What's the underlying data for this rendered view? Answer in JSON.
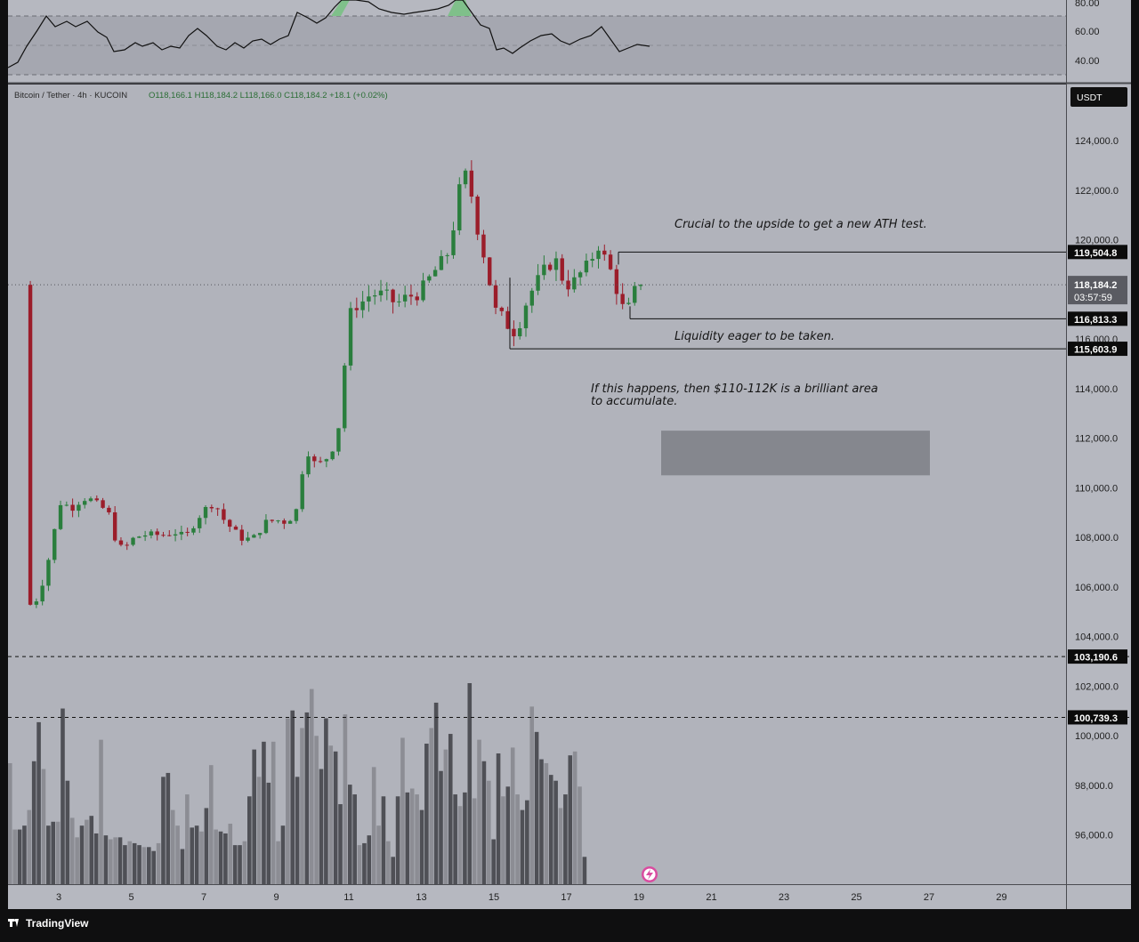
{
  "header": {
    "symbol": "Bitcoin / Tether · 4h · KUCOIN",
    "ohlc": "O118,166.1  H118,184.2  L118,166.0  C118,184.2  +18.1 (+0.02%)"
  },
  "currency_label": "USDT",
  "footer": {
    "brand": "TradingView"
  },
  "colors": {
    "background": "#b1b3bb",
    "up": "#2a7e3d",
    "down": "#9b1d2a",
    "volume_dark": "#4f5056",
    "volume_light": "#8c8d94",
    "rsi_line": "#111111",
    "accumulation_zone": "#85878e"
  },
  "rsi": {
    "ticks": [
      "80.00",
      "60.00",
      "40.00"
    ]
  },
  "chart_data": {
    "type": "candlestick",
    "timeframe": "4h",
    "ylim": [
      94800,
      125600
    ],
    "y_ticks": [
      "124,000.0",
      "122,000.0",
      "120,000.0",
      "116,000.0",
      "114,000.0",
      "112,000.0",
      "110,000.0",
      "108,000.0",
      "106,000.0",
      "104,000.0",
      "102,000.0",
      "100,000.0",
      "98,000.0",
      "96,000.0"
    ],
    "x_ticks": [
      "3",
      "5",
      "7",
      "9",
      "11",
      "13",
      "15",
      "17",
      "19",
      "21",
      "23",
      "25",
      "27",
      "29"
    ],
    "current_price": "118,184.2",
    "countdown": "03:57:59",
    "levels": [
      {
        "label": "119,504.8",
        "value": 119504.8,
        "style": "solid"
      },
      {
        "label": "116,813.3",
        "value": 116813.3,
        "style": "solid"
      },
      {
        "label": "115,603.9",
        "value": 115603.9,
        "style": "solid"
      },
      {
        "label": "103,190.6",
        "value": 103190.6,
        "style": "dashed"
      },
      {
        "label": "100,739.3",
        "value": 100739.3,
        "style": "dashed"
      }
    ],
    "accumulation_zone": [
      110500,
      112300
    ],
    "annotations": {
      "upside": "Crucial to the upside to get a new ATH test.",
      "liquidity": "Liquidity eager to be taken.",
      "scenario_line1": "If this happens, then $110-112K is a brilliant area",
      "scenario_line2": "to accumulate."
    },
    "price_path": [
      [
        2.1,
        105400
      ],
      [
        2.3,
        105200
      ],
      [
        2.5,
        105900
      ],
      [
        2.7,
        107000
      ],
      [
        2.9,
        108400
      ],
      [
        3.0,
        109400
      ],
      [
        3.2,
        109300
      ],
      [
        3.4,
        109200
      ],
      [
        3.6,
        109500
      ],
      [
        3.8,
        109600
      ],
      [
        4.0,
        109400
      ],
      [
        4.2,
        109200
      ],
      [
        4.4,
        108900
      ],
      [
        4.6,
        107700
      ],
      [
        4.8,
        107500
      ],
      [
        5.0,
        107900
      ],
      [
        5.3,
        108100
      ],
      [
        5.6,
        108100
      ],
      [
        5.9,
        108100
      ],
      [
        6.2,
        108200
      ],
      [
        6.5,
        108000
      ],
      [
        6.8,
        108700
      ],
      [
        7.0,
        109100
      ],
      [
        7.3,
        109400
      ],
      [
        7.5,
        108800
      ],
      [
        7.8,
        108300
      ],
      [
        8.1,
        107900
      ],
      [
        8.4,
        108000
      ],
      [
        8.7,
        108600
      ],
      [
        9.0,
        108700
      ],
      [
        9.3,
        108600
      ],
      [
        9.6,
        109200
      ],
      [
        9.8,
        111700
      ],
      [
        10.0,
        111000
      ],
      [
        10.3,
        111000
      ],
      [
        10.6,
        111700
      ],
      [
        10.8,
        113000
      ],
      [
        10.95,
        116500
      ],
      [
        11.1,
        117300
      ],
      [
        11.3,
        117400
      ],
      [
        11.6,
        117800
      ],
      [
        12.0,
        117800
      ],
      [
        12.3,
        117400
      ],
      [
        12.6,
        117700
      ],
      [
        12.9,
        117800
      ],
      [
        13.2,
        118400
      ],
      [
        13.5,
        119000
      ],
      [
        13.8,
        119600
      ],
      [
        14.0,
        121800
      ],
      [
        14.2,
        122700
      ],
      [
        14.4,
        121700
      ],
      [
        14.6,
        120000
      ],
      [
        14.8,
        119000
      ],
      [
        15.0,
        117200
      ],
      [
        15.3,
        116800
      ],
      [
        15.5,
        116200
      ],
      [
        15.7,
        116600
      ],
      [
        15.9,
        117500
      ],
      [
        16.1,
        118100
      ],
      [
        16.4,
        118800
      ],
      [
        16.7,
        119200
      ],
      [
        16.9,
        118400
      ],
      [
        17.1,
        118100
      ],
      [
        17.3,
        118500
      ],
      [
        17.6,
        119000
      ],
      [
        17.9,
        119800
      ],
      [
        18.1,
        119100
      ],
      [
        18.3,
        118500
      ],
      [
        18.5,
        117300
      ],
      [
        18.7,
        117200
      ],
      [
        18.9,
        118000
      ],
      [
        19.1,
        118184.2
      ]
    ],
    "volume": [
      62,
      28,
      28,
      30,
      38,
      63,
      83,
      59,
      30,
      32,
      32,
      90,
      53,
      34,
      24,
      30,
      33,
      35,
      26,
      74,
      25,
      23,
      24,
      24,
      20,
      22,
      21,
      20,
      19,
      19,
      17,
      21,
      55,
      57,
      38,
      30,
      18,
      46,
      29,
      30,
      27,
      39,
      61,
      28,
      27,
      26,
      31,
      20,
      20,
      22,
      45,
      69,
      55,
      73,
      52,
      73,
      22,
      30,
      85,
      89,
      55,
      80,
      88,
      100,
      76,
      59,
      85,
      71,
      68,
      41,
      87,
      51,
      46,
      20,
      21,
      25,
      60,
      30,
      45,
      22,
      14,
      45,
      75,
      47,
      49,
      46,
      38,
      72,
      80,
      93,
      58,
      69,
      77,
      46,
      40,
      47,
      103,
      44,
      74,
      63,
      53,
      23,
      67,
      45,
      50,
      70,
      46,
      38,
      43,
      91,
      78,
      64,
      62,
      56,
      53,
      39,
      46,
      66,
      68,
      50,
      14
    ]
  }
}
